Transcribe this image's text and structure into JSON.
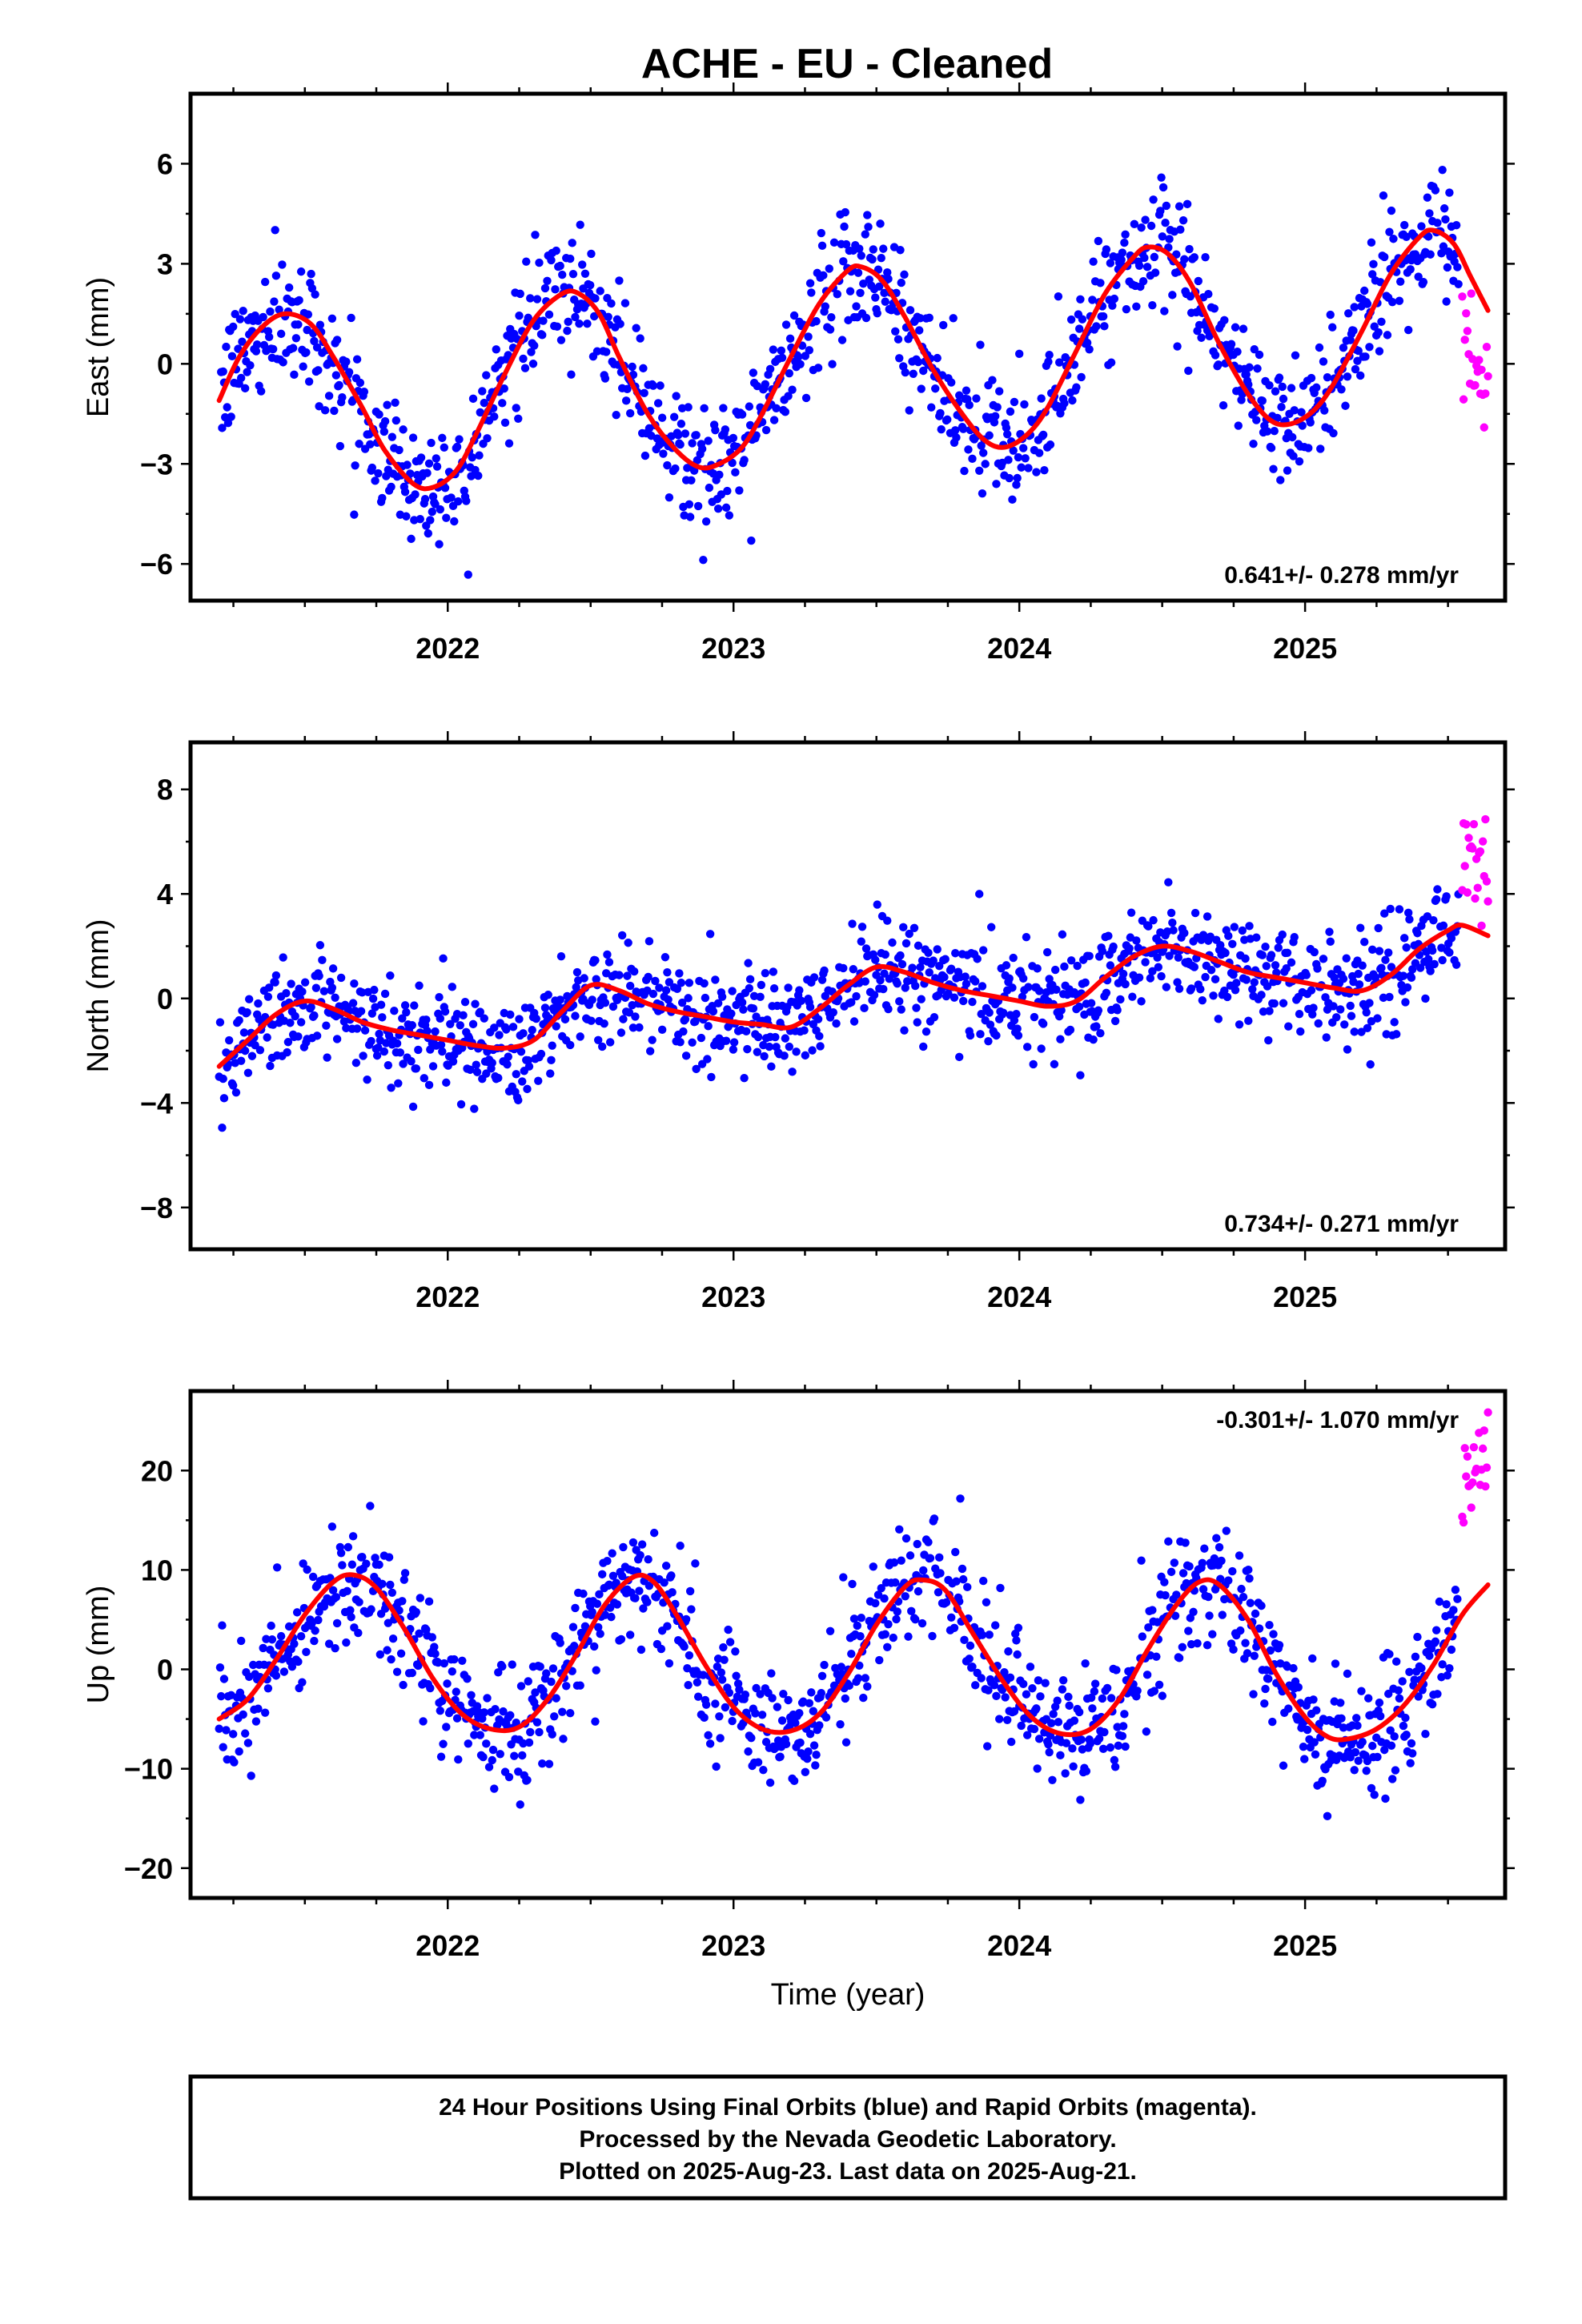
{
  "title": "ACHE  - EU - Cleaned",
  "colors": {
    "final": "#0000ff",
    "rapid": "#ff00ff",
    "fit": "#ff0000"
  },
  "chart_data": [
    {
      "type": "scatter",
      "ylabel": "East (mm)",
      "xlim": [
        2021.1,
        2025.7
      ],
      "ylim": [
        -7.1,
        8.1
      ],
      "yticks": [
        -6,
        -3,
        0,
        3,
        6
      ],
      "ytick_labels": [
        "−6",
        "−3",
        "0",
        "3",
        "6"
      ],
      "xticks": [
        2022,
        2023,
        2024,
        2025
      ],
      "xtick_labels": [
        "2022",
        "2023",
        "2024",
        "2025"
      ],
      "rate_text": "0.641+/- 0.278 mm/yr",
      "rate_position": "bottom-right",
      "final_span": [
        2021.2,
        2025.54
      ],
      "rapid_span": [
        2025.55,
        2025.64
      ],
      "fit_points": [
        [
          2021.2,
          -1.1
        ],
        [
          2021.27,
          0.2
        ],
        [
          2021.35,
          1.1
        ],
        [
          2021.43,
          1.5
        ],
        [
          2021.52,
          1.2
        ],
        [
          2021.6,
          0.2
        ],
        [
          2021.7,
          -1.3
        ],
        [
          2021.78,
          -2.6
        ],
        [
          2021.88,
          -3.6
        ],
        [
          2021.95,
          -3.7
        ],
        [
          2022.03,
          -3.2
        ],
        [
          2022.1,
          -2.1
        ],
        [
          2022.2,
          -0.3
        ],
        [
          2022.3,
          1.3
        ],
        [
          2022.4,
          2.1
        ],
        [
          2022.46,
          2.1
        ],
        [
          2022.53,
          1.5
        ],
        [
          2022.6,
          0.2
        ],
        [
          2022.7,
          -1.5
        ],
        [
          2022.8,
          -2.6
        ],
        [
          2022.88,
          -3.1
        ],
        [
          2022.95,
          -3.0
        ],
        [
          2023.03,
          -2.5
        ],
        [
          2023.1,
          -1.5
        ],
        [
          2023.2,
          0.2
        ],
        [
          2023.3,
          1.8
        ],
        [
          2023.4,
          2.8
        ],
        [
          2023.45,
          2.9
        ],
        [
          2023.52,
          2.5
        ],
        [
          2023.6,
          1.4
        ],
        [
          2023.7,
          -0.2
        ],
        [
          2023.8,
          -1.5
        ],
        [
          2023.88,
          -2.3
        ],
        [
          2023.95,
          -2.5
        ],
        [
          2024.03,
          -2.1
        ],
        [
          2024.1,
          -1.3
        ],
        [
          2024.2,
          0.4
        ],
        [
          2024.3,
          2.1
        ],
        [
          2024.4,
          3.2
        ],
        [
          2024.45,
          3.5
        ],
        [
          2024.52,
          3.3
        ],
        [
          2024.6,
          2.4
        ],
        [
          2024.7,
          0.6
        ],
        [
          2024.8,
          -0.9
        ],
        [
          2024.88,
          -1.7
        ],
        [
          2024.95,
          -1.8
        ],
        [
          2025.03,
          -1.4
        ],
        [
          2025.1,
          -0.6
        ],
        [
          2025.2,
          1.0
        ],
        [
          2025.3,
          2.7
        ],
        [
          2025.4,
          3.8
        ],
        [
          2025.45,
          4.0
        ],
        [
          2025.52,
          3.6
        ],
        [
          2025.58,
          2.6
        ],
        [
          2025.64,
          1.6
        ]
      ],
      "scatter_sigma": 0.9
    },
    {
      "type": "scatter",
      "ylabel": "North (mm)",
      "xlim": [
        2021.1,
        2025.7
      ],
      "ylim": [
        -9.6,
        9.8
      ],
      "yticks": [
        -8,
        -4,
        0,
        4,
        8
      ],
      "ytick_labels": [
        "−8",
        "−4",
        "0",
        "4",
        "8"
      ],
      "xticks": [
        2022,
        2023,
        2024,
        2025
      ],
      "xtick_labels": [
        "2022",
        "2023",
        "2024",
        "2025"
      ],
      "rate_text": "0.734+/- 0.271 mm/yr",
      "rate_position": "bottom-right",
      "final_span": [
        2021.2,
        2025.54
      ],
      "rapid_span": [
        2025.55,
        2025.64
      ],
      "fit_points": [
        [
          2021.2,
          -2.6
        ],
        [
          2021.3,
          -1.6
        ],
        [
          2021.4,
          -0.6
        ],
        [
          2021.5,
          -0.1
        ],
        [
          2021.6,
          -0.4
        ],
        [
          2021.7,
          -0.9
        ],
        [
          2021.8,
          -1.2
        ],
        [
          2021.9,
          -1.4
        ],
        [
          2022.0,
          -1.6
        ],
        [
          2022.1,
          -1.8
        ],
        [
          2022.2,
          -1.9
        ],
        [
          2022.3,
          -1.6
        ],
        [
          2022.4,
          -0.5
        ],
        [
          2022.5,
          0.5
        ],
        [
          2022.6,
          0.3
        ],
        [
          2022.7,
          -0.2
        ],
        [
          2022.8,
          -0.5
        ],
        [
          2022.9,
          -0.7
        ],
        [
          2023.0,
          -0.9
        ],
        [
          2023.1,
          -1.0
        ],
        [
          2023.2,
          -1.1
        ],
        [
          2023.3,
          -0.4
        ],
        [
          2023.4,
          0.5
        ],
        [
          2023.5,
          1.2
        ],
        [
          2023.6,
          1.0
        ],
        [
          2023.7,
          0.6
        ],
        [
          2023.8,
          0.3
        ],
        [
          2023.9,
          0.1
        ],
        [
          2024.0,
          -0.1
        ],
        [
          2024.1,
          -0.3
        ],
        [
          2024.2,
          -0.1
        ],
        [
          2024.3,
          0.8
        ],
        [
          2024.4,
          1.6
        ],
        [
          2024.5,
          2.0
        ],
        [
          2024.6,
          1.8
        ],
        [
          2024.7,
          1.4
        ],
        [
          2024.8,
          1.0
        ],
        [
          2024.9,
          0.8
        ],
        [
          2025.0,
          0.6
        ],
        [
          2025.1,
          0.4
        ],
        [
          2025.2,
          0.3
        ],
        [
          2025.3,
          0.9
        ],
        [
          2025.4,
          1.9
        ],
        [
          2025.5,
          2.6
        ],
        [
          2025.55,
          2.8
        ],
        [
          2025.64,
          2.4
        ]
      ],
      "scatter_sigma": 1.0
    },
    {
      "type": "scatter",
      "ylabel": "Up (mm)",
      "xlim": [
        2021.1,
        2025.7
      ],
      "ylim": [
        -23.0,
        28.0
      ],
      "yticks": [
        -20,
        -10,
        0,
        10,
        20
      ],
      "ytick_labels": [
        "−20",
        "−10",
        "0",
        "10",
        "20"
      ],
      "xticks": [
        2022,
        2023,
        2024,
        2025
      ],
      "xtick_labels": [
        "2022",
        "2023",
        "2024",
        "2025"
      ],
      "xlabel": "Time (year)",
      "rate_text": "-0.301+/- 1.070 mm/yr",
      "rate_position": "top-right",
      "final_span": [
        2021.2,
        2025.54
      ],
      "rapid_span": [
        2025.55,
        2025.64
      ],
      "fit_points": [
        [
          2021.2,
          -5.0
        ],
        [
          2021.3,
          -3.0
        ],
        [
          2021.4,
          1.0
        ],
        [
          2021.5,
          5.5
        ],
        [
          2021.6,
          8.8
        ],
        [
          2021.67,
          9.5
        ],
        [
          2021.75,
          8.2
        ],
        [
          2021.85,
          4.0
        ],
        [
          2021.95,
          -1.0
        ],
        [
          2022.05,
          -4.5
        ],
        [
          2022.15,
          -6.0
        ],
        [
          2022.25,
          -5.8
        ],
        [
          2022.35,
          -3.0
        ],
        [
          2022.45,
          1.5
        ],
        [
          2022.55,
          6.5
        ],
        [
          2022.65,
          9.3
        ],
        [
          2022.72,
          8.8
        ],
        [
          2022.8,
          5.5
        ],
        [
          2022.9,
          0.5
        ],
        [
          2023.0,
          -3.8
        ],
        [
          2023.1,
          -6.0
        ],
        [
          2023.2,
          -6.2
        ],
        [
          2023.3,
          -4.5
        ],
        [
          2023.4,
          -0.5
        ],
        [
          2023.5,
          4.5
        ],
        [
          2023.6,
          8.3
        ],
        [
          2023.66,
          9.0
        ],
        [
          2023.74,
          8.0
        ],
        [
          2023.84,
          3.5
        ],
        [
          2023.95,
          -1.5
        ],
        [
          2024.05,
          -5.0
        ],
        [
          2024.15,
          -6.5
        ],
        [
          2024.25,
          -6.0
        ],
        [
          2024.35,
          -3.0
        ],
        [
          2024.45,
          2.0
        ],
        [
          2024.55,
          6.5
        ],
        [
          2024.63,
          8.8
        ],
        [
          2024.7,
          8.5
        ],
        [
          2024.8,
          5.0
        ],
        [
          2024.9,
          -0.5
        ],
        [
          2025.0,
          -4.8
        ],
        [
          2025.08,
          -6.8
        ],
        [
          2025.15,
          -7.0
        ],
        [
          2025.25,
          -6.0
        ],
        [
          2025.35,
          -3.5
        ],
        [
          2025.45,
          0.5
        ],
        [
          2025.55,
          5.5
        ],
        [
          2025.64,
          8.5
        ]
      ],
      "scatter_sigma": 3.2
    }
  ],
  "footer": {
    "line1": "24 Hour Positions Using Final Orbits (blue) and Rapid Orbits (magenta).",
    "line2": "Processed by the Nevada Geodetic Laboratory.",
    "line3": "Plotted on 2025-Aug-23. Last data on 2025-Aug-21."
  }
}
